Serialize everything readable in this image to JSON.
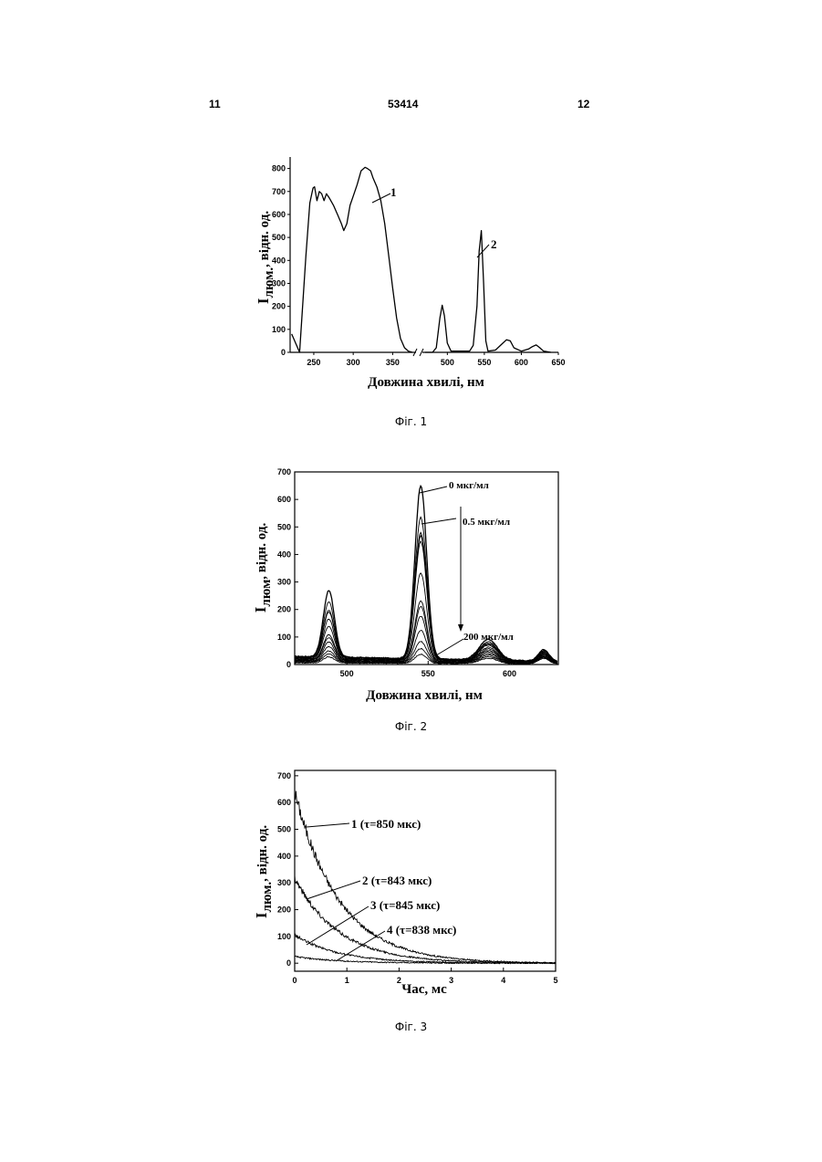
{
  "header": {
    "left_page": "11",
    "doc_number": "53414",
    "right_page": "12"
  },
  "chart_data": [
    {
      "type": "line",
      "caption": "Фіг. 1",
      "xlabel": "Довжина хвилі, нм",
      "ylabel": "Iлюм., відн. од.",
      "ylabel_main": "I",
      "ylabel_sub": "люм.",
      "ylabel_rest": ", відн. од.",
      "ylim": [
        0,
        850
      ],
      "xaxis_break": [
        375,
        470
      ],
      "x_ticks": [
        "250",
        "300",
        "350",
        "500",
        "550",
        "600",
        "650"
      ],
      "y_ticks": [
        "0",
        "100",
        "200",
        "300",
        "400",
        "500",
        "600",
        "700",
        "800"
      ],
      "series": [
        {
          "name": "1",
          "x": [
            222,
            232,
            240,
            245,
            249,
            251,
            254,
            257,
            260,
            263,
            266,
            270,
            275,
            280,
            285,
            288,
            292,
            296,
            300,
            305,
            310,
            315,
            318,
            322,
            325,
            330,
            335,
            340,
            345,
            350,
            355,
            360,
            365,
            370,
            375
          ],
          "y": [
            80,
            0,
            420,
            650,
            715,
            720,
            660,
            700,
            690,
            660,
            690,
            670,
            640,
            600,
            560,
            530,
            560,
            640,
            680,
            730,
            790,
            805,
            800,
            790,
            760,
            720,
            660,
            560,
            420,
            280,
            150,
            60,
            20,
            5,
            0
          ]
        },
        {
          "name": "2",
          "x": [
            470,
            480,
            485,
            490,
            493,
            496,
            500,
            505,
            520,
            530,
            535,
            540,
            543,
            546,
            549,
            552,
            555,
            565,
            575,
            580,
            585,
            590,
            600,
            610,
            615,
            620,
            625,
            630,
            640
          ],
          "y": [
            0,
            0,
            20,
            150,
            205,
            160,
            40,
            5,
            5,
            5,
            30,
            200,
            440,
            530,
            300,
            50,
            5,
            10,
            40,
            55,
            50,
            20,
            5,
            15,
            25,
            32,
            20,
            5,
            0
          ]
        }
      ],
      "annotations": [
        "1",
        "2"
      ]
    },
    {
      "type": "line",
      "caption": "Фіг. 2",
      "xlabel": "Довжина хвилі, нм",
      "ylabel": "Iлюм, відн. од.",
      "ylabel_main": "I",
      "ylabel_sub": "люм",
      "ylabel_rest": ", відн. од.",
      "xlim": [
        468,
        630
      ],
      "ylim": [
        0,
        700
      ],
      "x_ticks": [
        "500",
        "550",
        "600"
      ],
      "y_ticks": [
        "0",
        "100",
        "200",
        "300",
        "400",
        "500",
        "600",
        "700"
      ],
      "peaks": {
        "p490": [
          255,
          215,
          185,
          180,
          155,
          130,
          100,
          90,
          75,
          60,
          45,
          35,
          25
        ],
        "p545": [
          640,
          525,
          470,
          460,
          440,
          325,
          225,
          205,
          170,
          120,
          80,
          55,
          35
        ],
        "p585": [
          80,
          72,
          68,
          65,
          62,
          55,
          50,
          45,
          40,
          35,
          30,
          25,
          20
        ],
        "p622": [
          45,
          42,
          40,
          38,
          36,
          34,
          32,
          30,
          28,
          26,
          24,
          22,
          20
        ],
        "base": [
          30,
          28,
          26,
          24,
          22,
          20,
          18,
          16,
          14,
          12,
          10,
          8,
          6
        ]
      },
      "annotations": [
        "0 мкг/мл",
        "0.5 мкг/мл",
        "200 мкг/мл"
      ]
    },
    {
      "type": "line",
      "caption": "Фіг. 3",
      "xlabel": "Час, мс",
      "ylabel": "Iлюм., відн. од.",
      "ylabel_main": "I",
      "ylabel_sub": "люм.",
      "ylabel_rest": ", відн. од.",
      "xlim": [
        0,
        5
      ],
      "ylim": [
        -30,
        720
      ],
      "x_ticks": [
        "0",
        "1",
        "2",
        "3",
        "4",
        "5"
      ],
      "y_ticks": [
        "0",
        "100",
        "200",
        "300",
        "400",
        "500",
        "600",
        "700"
      ],
      "series": [
        {
          "name": "1 (τ=850 мкс)",
          "amplitude": 640,
          "tau_ms": 0.85
        },
        {
          "name": "2 (τ=843 мкс)",
          "amplitude": 320,
          "tau_ms": 0.843
        },
        {
          "name": "3 (τ=845 мкс)",
          "amplitude": 105,
          "tau_ms": 0.845
        },
        {
          "name": "4 (τ=838 мкс)",
          "amplitude": 25,
          "tau_ms": 0.838
        }
      ],
      "annotations": [
        "1 (τ=850 мкс)",
        "2 (τ=843 мкс)",
        "3 (τ=845 мкс)",
        "4 (τ=838 мкс)"
      ]
    }
  ]
}
